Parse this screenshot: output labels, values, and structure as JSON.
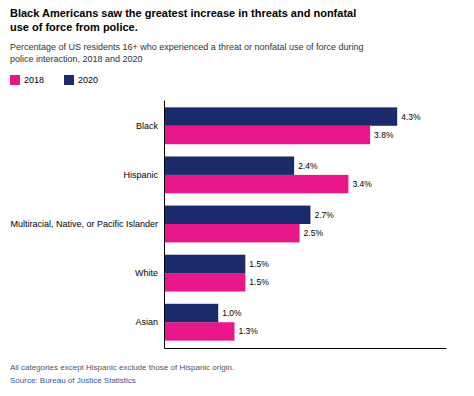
{
  "chart_data": {
    "type": "bar",
    "orientation": "horizontal",
    "title": "Black Americans saw the greatest increase in threats and nonfatal\nuse of force from police.",
    "subtitle": "Percentage of US residents 16+ who experienced a threat or nonfatal use of force during\npolice interaction, 2018 and 2020",
    "categories": [
      "Black",
      "Hispanic",
      "Multiracial, Native, or Pacific Islander",
      "White",
      "Asian"
    ],
    "series": [
      {
        "name": "2018",
        "color": "#E8178A",
        "values": [
          3.8,
          3.4,
          2.5,
          1.5,
          1.3
        ],
        "value_labels": [
          "3.8%",
          "3.4%",
          "2.5%",
          "1.5%",
          "1.3%"
        ]
      },
      {
        "name": "2020",
        "color": "#1B2A6B",
        "values": [
          4.3,
          2.4,
          2.7,
          1.5,
          1.0
        ],
        "value_labels": [
          "4.3%",
          "2.4%",
          "2.7%",
          "1.5%",
          "1.0%"
        ]
      }
    ],
    "xlim": [
      0,
      5.2
    ],
    "data_labels": true,
    "tick_labels": "y",
    "grid": false,
    "legend": "top-left",
    "annotations": [
      "All categories except Hispanic exclude those of Hispanic origin.",
      "Source: Bureau of Justice Statistics"
    ]
  }
}
